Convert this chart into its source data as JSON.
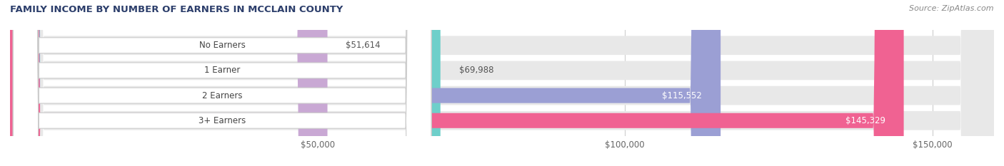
{
  "title": "FAMILY INCOME BY NUMBER OF EARNERS IN MCCLAIN COUNTY",
  "source": "Source: ZipAtlas.com",
  "categories": [
    "No Earners",
    "1 Earner",
    "2 Earners",
    "3+ Earners"
  ],
  "values": [
    51614,
    69988,
    115552,
    145329
  ],
  "bar_colors": [
    "#c9a8d4",
    "#6ecfca",
    "#9b9fd4",
    "#f06292"
  ],
  "value_labels": [
    "$51,614",
    "$69,988",
    "$115,552",
    "$145,329"
  ],
  "x_ticks": [
    50000,
    100000,
    150000
  ],
  "x_tick_labels": [
    "$50,000",
    "$100,000",
    "$150,000"
  ],
  "xlim": [
    0,
    160000
  ],
  "figsize": [
    14.06,
    2.33
  ],
  "dpi": 100,
  "background_color": "#ffffff"
}
